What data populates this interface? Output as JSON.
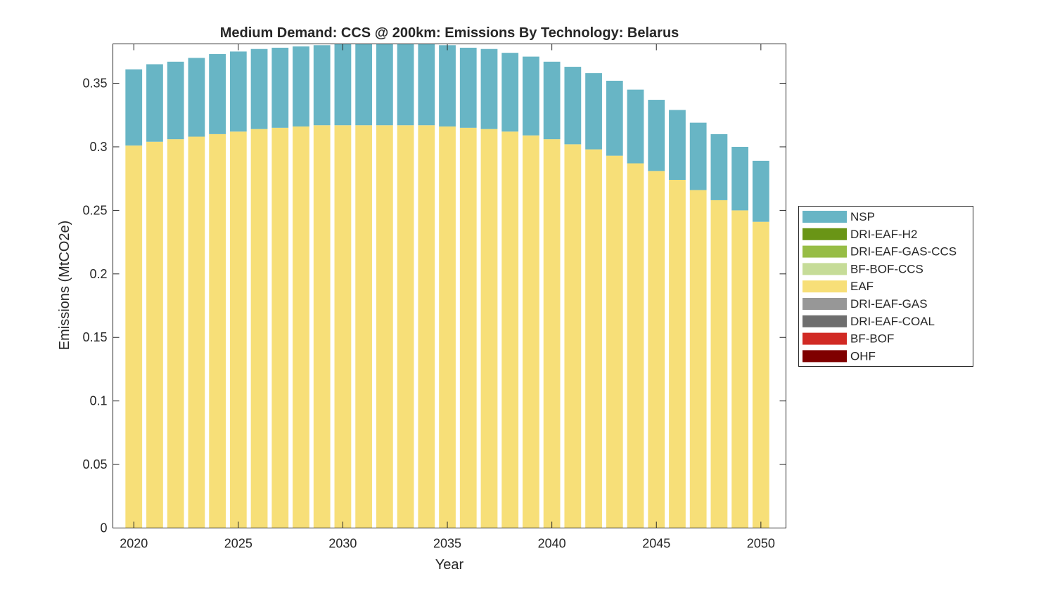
{
  "chart_data": {
    "type": "bar",
    "stacked": true,
    "title": "Medium Demand: CCS @ 200km: Emissions By Technology: Belarus",
    "xlabel": "Year",
    "ylabel": "Emissions (MtCO2e)",
    "xlim": [
      2019,
      2051.2
    ],
    "ylim": [
      0,
      0.381
    ],
    "xticks": [
      2020,
      2025,
      2030,
      2035,
      2040,
      2045,
      2050
    ],
    "yticks": [
      0,
      0.05,
      0.1,
      0.15,
      0.2,
      0.25,
      0.3,
      0.35
    ],
    "ytick_labels": [
      "0",
      "0.05",
      "0.1",
      "0.15",
      "0.2",
      "0.25",
      "0.3",
      "0.35"
    ],
    "grid": false,
    "legend_position": "right",
    "categories": [
      2020,
      2021,
      2022,
      2023,
      2024,
      2025,
      2026,
      2027,
      2028,
      2029,
      2030,
      2031,
      2032,
      2033,
      2034,
      2035,
      2036,
      2037,
      2038,
      2039,
      2040,
      2041,
      2042,
      2043,
      2044,
      2045,
      2046,
      2047,
      2048,
      2049,
      2050
    ],
    "series": [
      {
        "name": "OHF",
        "color": "#7f0000",
        "values": [
          0,
          0,
          0,
          0,
          0,
          0,
          0,
          0,
          0,
          0,
          0,
          0,
          0,
          0,
          0,
          0,
          0,
          0,
          0,
          0,
          0,
          0,
          0,
          0,
          0,
          0,
          0,
          0,
          0,
          0,
          0
        ]
      },
      {
        "name": "BF-BOF",
        "color": "#d12a24",
        "values": [
          0,
          0,
          0,
          0,
          0,
          0,
          0,
          0,
          0,
          0,
          0,
          0,
          0,
          0,
          0,
          0,
          0,
          0,
          0,
          0,
          0,
          0,
          0,
          0,
          0,
          0,
          0,
          0,
          0,
          0,
          0
        ]
      },
      {
        "name": "DRI-EAF-COAL",
        "color": "#6e6e6e",
        "values": [
          0,
          0,
          0,
          0,
          0,
          0,
          0,
          0,
          0,
          0,
          0,
          0,
          0,
          0,
          0,
          0,
          0,
          0,
          0,
          0,
          0,
          0,
          0,
          0,
          0,
          0,
          0,
          0,
          0,
          0,
          0
        ]
      },
      {
        "name": "DRI-EAF-GAS",
        "color": "#979797",
        "values": [
          0,
          0,
          0,
          0,
          0,
          0,
          0,
          0,
          0,
          0,
          0,
          0,
          0,
          0,
          0,
          0,
          0,
          0,
          0,
          0,
          0,
          0,
          0,
          0,
          0,
          0,
          0,
          0,
          0,
          0,
          0
        ]
      },
      {
        "name": "EAF",
        "color": "#f7df78",
        "values": [
          0.301,
          0.304,
          0.306,
          0.308,
          0.31,
          0.312,
          0.314,
          0.315,
          0.316,
          0.317,
          0.317,
          0.317,
          0.317,
          0.317,
          0.317,
          0.316,
          0.315,
          0.314,
          0.312,
          0.309,
          0.306,
          0.302,
          0.298,
          0.293,
          0.287,
          0.281,
          0.274,
          0.266,
          0.258,
          0.25,
          0.241
        ]
      },
      {
        "name": "BF-BOF-CCS",
        "color": "#c6dc98",
        "values": [
          0,
          0,
          0,
          0,
          0,
          0,
          0,
          0,
          0,
          0,
          0,
          0,
          0,
          0,
          0,
          0,
          0,
          0,
          0,
          0,
          0,
          0,
          0,
          0,
          0,
          0,
          0,
          0,
          0,
          0,
          0
        ]
      },
      {
        "name": "DRI-EAF-GAS-CCS",
        "color": "#97bd45",
        "values": [
          0,
          0,
          0,
          0,
          0,
          0,
          0,
          0,
          0,
          0,
          0,
          0,
          0,
          0,
          0,
          0,
          0,
          0,
          0,
          0,
          0,
          0,
          0,
          0,
          0,
          0,
          0,
          0,
          0,
          0,
          0
        ]
      },
      {
        "name": "DRI-EAF-H2",
        "color": "#6a9516",
        "values": [
          0,
          0,
          0,
          0,
          0,
          0,
          0,
          0,
          0,
          0,
          0,
          0,
          0,
          0,
          0,
          0,
          0,
          0,
          0,
          0,
          0,
          0,
          0,
          0,
          0,
          0,
          0,
          0,
          0,
          0,
          0
        ]
      },
      {
        "name": "NSP",
        "color": "#68b5c5",
        "values": [
          0.06,
          0.061,
          0.061,
          0.062,
          0.063,
          0.063,
          0.063,
          0.063,
          0.063,
          0.063,
          0.064,
          0.064,
          0.064,
          0.064,
          0.064,
          0.064,
          0.063,
          0.063,
          0.062,
          0.062,
          0.061,
          0.061,
          0.06,
          0.059,
          0.058,
          0.056,
          0.055,
          0.053,
          0.052,
          0.05,
          0.048
        ]
      }
    ],
    "legend_order": [
      "NSP",
      "DRI-EAF-H2",
      "DRI-EAF-GAS-CCS",
      "BF-BOF-CCS",
      "EAF",
      "DRI-EAF-GAS",
      "DRI-EAF-COAL",
      "BF-BOF",
      "OHF"
    ]
  }
}
